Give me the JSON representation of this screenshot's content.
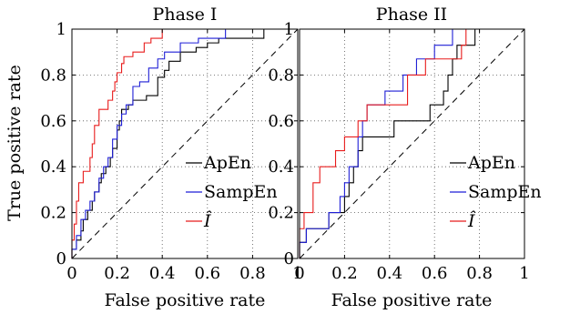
{
  "chart_data": [
    {
      "type": "line",
      "title": "Phase I",
      "xlabel": "False positive rate",
      "ylabel": "True positive rate",
      "xlim": [
        0,
        1
      ],
      "ylim": [
        0,
        1
      ],
      "xticks": [
        "0",
        "0.2",
        "0.4",
        "0.6",
        "0.8",
        "1"
      ],
      "yticks": [
        "0",
        "0.2",
        "0.4",
        "0.6",
        "0.8",
        "1"
      ],
      "grid": true,
      "legend_position": "bottom-right",
      "chance_line": true,
      "series": [
        {
          "name": "ApEn",
          "color": "#000000",
          "points": [
            [
              0,
              0
            ],
            [
              0,
              0.04
            ],
            [
              0.02,
              0.04
            ],
            [
              0.02,
              0.08
            ],
            [
              0.04,
              0.08
            ],
            [
              0.04,
              0.12
            ],
            [
              0.05,
              0.12
            ],
            [
              0.05,
              0.17
            ],
            [
              0.07,
              0.17
            ],
            [
              0.07,
              0.21
            ],
            [
              0.09,
              0.21
            ],
            [
              0.09,
              0.25
            ],
            [
              0.1,
              0.25
            ],
            [
              0.1,
              0.29
            ],
            [
              0.12,
              0.29
            ],
            [
              0.12,
              0.33
            ],
            [
              0.13,
              0.33
            ],
            [
              0.13,
              0.37
            ],
            [
              0.15,
              0.37
            ],
            [
              0.15,
              0.4
            ],
            [
              0.17,
              0.4
            ],
            [
              0.17,
              0.44
            ],
            [
              0.18,
              0.44
            ],
            [
              0.18,
              0.48
            ],
            [
              0.2,
              0.48
            ],
            [
              0.2,
              0.56
            ],
            [
              0.21,
              0.56
            ],
            [
              0.21,
              0.6
            ],
            [
              0.22,
              0.6
            ],
            [
              0.22,
              0.65
            ],
            [
              0.25,
              0.65
            ],
            [
              0.25,
              0.67
            ],
            [
              0.27,
              0.67
            ],
            [
              0.27,
              0.69
            ],
            [
              0.33,
              0.69
            ],
            [
              0.33,
              0.71
            ],
            [
              0.38,
              0.71
            ],
            [
              0.38,
              0.79
            ],
            [
              0.41,
              0.79
            ],
            [
              0.41,
              0.82
            ],
            [
              0.43,
              0.82
            ],
            [
              0.43,
              0.86
            ],
            [
              0.48,
              0.86
            ],
            [
              0.48,
              0.9
            ],
            [
              0.55,
              0.9
            ],
            [
              0.55,
              0.92
            ],
            [
              0.6,
              0.92
            ],
            [
              0.6,
              0.94
            ],
            [
              0.65,
              0.94
            ],
            [
              0.65,
              0.96
            ],
            [
              0.85,
              0.96
            ],
            [
              0.85,
              1
            ],
            [
              1,
              1
            ]
          ]
        },
        {
          "name": "SampEn",
          "color": "#1f1fd6",
          "points": [
            [
              0,
              0
            ],
            [
              0,
              0.04
            ],
            [
              0.02,
              0.04
            ],
            [
              0.02,
              0.1
            ],
            [
              0.04,
              0.1
            ],
            [
              0.04,
              0.17
            ],
            [
              0.06,
              0.17
            ],
            [
              0.06,
              0.21
            ],
            [
              0.08,
              0.21
            ],
            [
              0.08,
              0.25
            ],
            [
              0.1,
              0.25
            ],
            [
              0.1,
              0.29
            ],
            [
              0.12,
              0.29
            ],
            [
              0.12,
              0.35
            ],
            [
              0.14,
              0.35
            ],
            [
              0.14,
              0.4
            ],
            [
              0.16,
              0.4
            ],
            [
              0.16,
              0.44
            ],
            [
              0.18,
              0.44
            ],
            [
              0.18,
              0.52
            ],
            [
              0.2,
              0.52
            ],
            [
              0.2,
              0.58
            ],
            [
              0.22,
              0.58
            ],
            [
              0.22,
              0.63
            ],
            [
              0.24,
              0.63
            ],
            [
              0.24,
              0.67
            ],
            [
              0.27,
              0.67
            ],
            [
              0.27,
              0.75
            ],
            [
              0.3,
              0.75
            ],
            [
              0.3,
              0.77
            ],
            [
              0.34,
              0.77
            ],
            [
              0.34,
              0.83
            ],
            [
              0.38,
              0.83
            ],
            [
              0.38,
              0.87
            ],
            [
              0.41,
              0.87
            ],
            [
              0.41,
              0.9
            ],
            [
              0.48,
              0.9
            ],
            [
              0.48,
              0.94
            ],
            [
              0.56,
              0.94
            ],
            [
              0.56,
              0.96
            ],
            [
              0.68,
              0.96
            ],
            [
              0.68,
              1
            ],
            [
              1,
              1
            ]
          ]
        },
        {
          "name": "Î",
          "color": "#e81c1c",
          "points": [
            [
              0,
              0
            ],
            [
              0,
              0.08
            ],
            [
              0.01,
              0.08
            ],
            [
              0.01,
              0.15
            ],
            [
              0.02,
              0.15
            ],
            [
              0.02,
              0.25
            ],
            [
              0.03,
              0.25
            ],
            [
              0.03,
              0.33
            ],
            [
              0.05,
              0.33
            ],
            [
              0.05,
              0.38
            ],
            [
              0.08,
              0.38
            ],
            [
              0.08,
              0.44
            ],
            [
              0.09,
              0.44
            ],
            [
              0.09,
              0.5
            ],
            [
              0.1,
              0.5
            ],
            [
              0.1,
              0.58
            ],
            [
              0.12,
              0.58
            ],
            [
              0.12,
              0.65
            ],
            [
              0.16,
              0.65
            ],
            [
              0.16,
              0.69
            ],
            [
              0.18,
              0.69
            ],
            [
              0.18,
              0.73
            ],
            [
              0.19,
              0.73
            ],
            [
              0.19,
              0.77
            ],
            [
              0.2,
              0.77
            ],
            [
              0.2,
              0.81
            ],
            [
              0.22,
              0.81
            ],
            [
              0.22,
              0.85
            ],
            [
              0.23,
              0.85
            ],
            [
              0.23,
              0.88
            ],
            [
              0.27,
              0.88
            ],
            [
              0.27,
              0.9
            ],
            [
              0.32,
              0.9
            ],
            [
              0.32,
              0.94
            ],
            [
              0.35,
              0.94
            ],
            [
              0.35,
              0.96
            ],
            [
              0.4,
              0.96
            ],
            [
              0.4,
              1
            ],
            [
              1,
              1
            ]
          ]
        }
      ]
    },
    {
      "type": "line",
      "title": "Phase II",
      "xlabel": "False positive rate",
      "ylabel": "",
      "xlim": [
        0,
        1
      ],
      "ylim": [
        0,
        1
      ],
      "xticks": [
        "0",
        "0.2",
        "0.4",
        "0.6",
        "0.8",
        "1"
      ],
      "yticks": [
        "0",
        "0.2",
        "0.4",
        "0.6",
        "0.8",
        "1"
      ],
      "grid": true,
      "legend_position": "bottom-right",
      "chance_line": true,
      "series": [
        {
          "name": "ApEn",
          "color": "#000000",
          "points": [
            [
              0,
              0
            ],
            [
              0,
              0.07
            ],
            [
              0.03,
              0.07
            ],
            [
              0.03,
              0.13
            ],
            [
              0.13,
              0.13
            ],
            [
              0.13,
              0.2
            ],
            [
              0.2,
              0.2
            ],
            [
              0.2,
              0.27
            ],
            [
              0.22,
              0.27
            ],
            [
              0.22,
              0.33
            ],
            [
              0.24,
              0.33
            ],
            [
              0.24,
              0.4
            ],
            [
              0.26,
              0.4
            ],
            [
              0.26,
              0.47
            ],
            [
              0.28,
              0.47
            ],
            [
              0.28,
              0.53
            ],
            [
              0.42,
              0.53
            ],
            [
              0.42,
              0.6
            ],
            [
              0.58,
              0.6
            ],
            [
              0.58,
              0.67
            ],
            [
              0.64,
              0.67
            ],
            [
              0.64,
              0.73
            ],
            [
              0.66,
              0.73
            ],
            [
              0.66,
              0.8
            ],
            [
              0.68,
              0.8
            ],
            [
              0.68,
              0.87
            ],
            [
              0.7,
              0.87
            ],
            [
              0.7,
              0.93
            ],
            [
              0.78,
              0.93
            ],
            [
              0.78,
              1
            ],
            [
              1,
              1
            ]
          ]
        },
        {
          "name": "SampEn",
          "color": "#1f1fd6",
          "points": [
            [
              0,
              0
            ],
            [
              0,
              0.07
            ],
            [
              0.03,
              0.07
            ],
            [
              0.03,
              0.13
            ],
            [
              0.13,
              0.13
            ],
            [
              0.13,
              0.2
            ],
            [
              0.18,
              0.2
            ],
            [
              0.18,
              0.27
            ],
            [
              0.2,
              0.27
            ],
            [
              0.2,
              0.33
            ],
            [
              0.22,
              0.33
            ],
            [
              0.22,
              0.4
            ],
            [
              0.26,
              0.4
            ],
            [
              0.26,
              0.53
            ],
            [
              0.28,
              0.53
            ],
            [
              0.28,
              0.6
            ],
            [
              0.3,
              0.6
            ],
            [
              0.3,
              0.67
            ],
            [
              0.38,
              0.67
            ],
            [
              0.38,
              0.73
            ],
            [
              0.46,
              0.73
            ],
            [
              0.46,
              0.8
            ],
            [
              0.52,
              0.8
            ],
            [
              0.52,
              0.87
            ],
            [
              0.6,
              0.87
            ],
            [
              0.6,
              0.93
            ],
            [
              0.68,
              0.93
            ],
            [
              0.68,
              1
            ],
            [
              1,
              1
            ]
          ]
        },
        {
          "name": "Î",
          "color": "#e81c1c",
          "points": [
            [
              0,
              0
            ],
            [
              0,
              0.13
            ],
            [
              0.02,
              0.13
            ],
            [
              0.02,
              0.2
            ],
            [
              0.06,
              0.2
            ],
            [
              0.06,
              0.33
            ],
            [
              0.09,
              0.33
            ],
            [
              0.09,
              0.4
            ],
            [
              0.16,
              0.4
            ],
            [
              0.16,
              0.47
            ],
            [
              0.2,
              0.47
            ],
            [
              0.2,
              0.53
            ],
            [
              0.26,
              0.53
            ],
            [
              0.26,
              0.6
            ],
            [
              0.3,
              0.6
            ],
            [
              0.3,
              0.67
            ],
            [
              0.48,
              0.67
            ],
            [
              0.48,
              0.8
            ],
            [
              0.56,
              0.8
            ],
            [
              0.56,
              0.87
            ],
            [
              0.72,
              0.87
            ],
            [
              0.72,
              0.93
            ],
            [
              0.74,
              0.93
            ],
            [
              0.74,
              1
            ],
            [
              1,
              1
            ]
          ]
        }
      ]
    }
  ]
}
